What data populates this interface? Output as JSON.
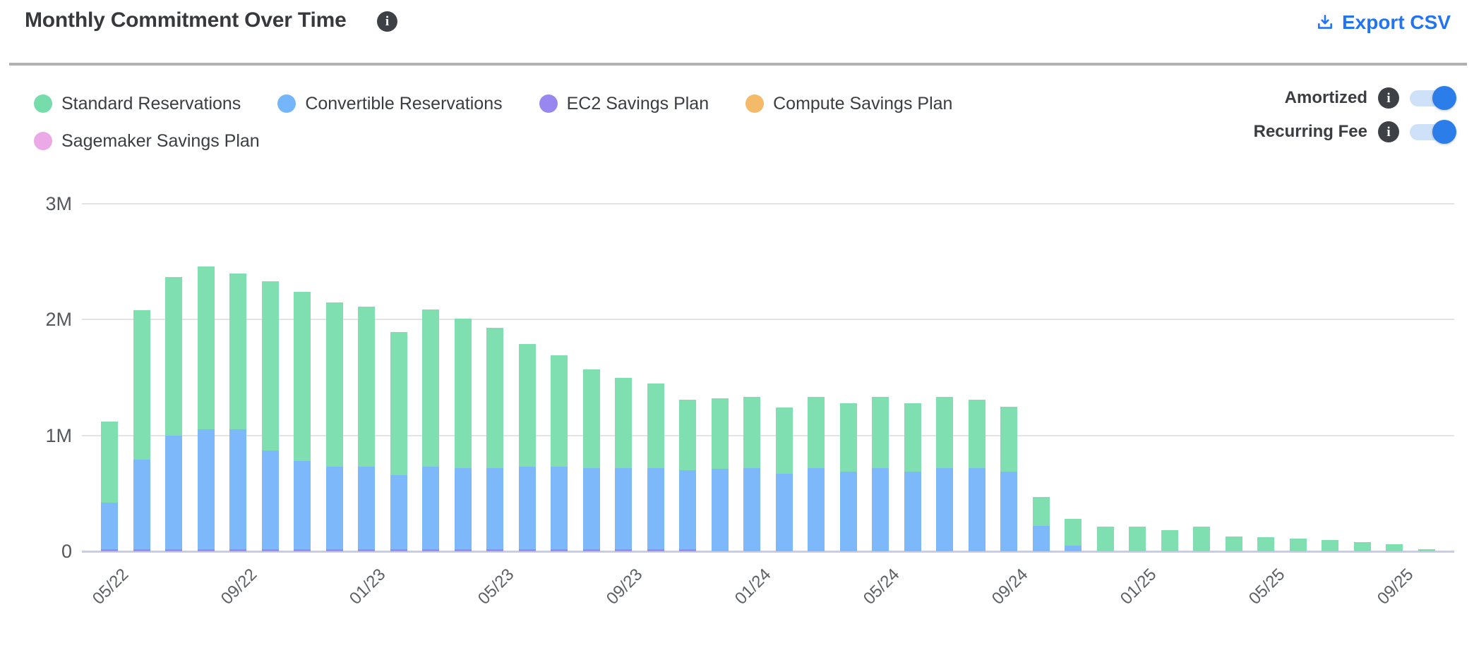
{
  "header": {
    "title": "Monthly Commitment Over Time",
    "info_icon": "i",
    "export_label": "Export CSV"
  },
  "legend": {
    "items": [
      {
        "label": "Standard Reservations",
        "color": "#76dcab"
      },
      {
        "label": "Convertible Reservations",
        "color": "#75b6fa"
      },
      {
        "label": "EC2 Savings Plan",
        "color": "#9787ef"
      },
      {
        "label": "Compute Savings Plan",
        "color": "#f4b969"
      },
      {
        "label": "Sagemaker Savings Plan",
        "color": "#eba9e8"
      }
    ]
  },
  "toggles": [
    {
      "label": "Amortized",
      "info_icon": "i",
      "state": "on"
    },
    {
      "label": "Recurring Fee",
      "info_icon": "i",
      "state": "on"
    }
  ],
  "colors": {
    "accent_blue": "#2374f2",
    "toggle_on": "#2b7de9",
    "toggle_track": "#cfe1f8",
    "info_icon_bg": "#3d4045",
    "bar_standard": "#80dfb0",
    "bar_convertible": "#7cb8fa",
    "bar_ec2_sp": "#9c8cf0",
    "gridline": "#e3e3e3",
    "baseline": "#c7cde6"
  },
  "chart_data": {
    "type": "bar",
    "stacked": true,
    "title": "Monthly Commitment Over Time",
    "xlabel": "",
    "ylabel": "",
    "values_unit": "millions",
    "ylim": [
      0,
      3
    ],
    "y_ticks": [
      "0",
      "1M",
      "2M",
      "3M"
    ],
    "grid": true,
    "legend_position": "top-left",
    "categories": [
      "05/22",
      "06/22",
      "07/22",
      "08/22",
      "09/22",
      "10/22",
      "11/22",
      "12/22",
      "01/23",
      "02/23",
      "03/23",
      "04/23",
      "05/23",
      "06/23",
      "07/23",
      "08/23",
      "09/23",
      "10/23",
      "11/23",
      "12/23",
      "01/24",
      "02/24",
      "03/24",
      "04/24",
      "05/24",
      "06/24",
      "07/24",
      "08/24",
      "09/24",
      "10/24",
      "11/24",
      "12/24",
      "01/25",
      "02/25",
      "03/25",
      "04/25",
      "05/25",
      "06/25",
      "07/25",
      "08/25",
      "09/25",
      "10/25"
    ],
    "x_ticks": [
      "05/22",
      "09/22",
      "01/23",
      "05/23",
      "09/23",
      "01/24",
      "05/24",
      "09/24",
      "01/25",
      "05/25",
      "09/25"
    ],
    "stack_order_note": "series listed bottom-to-top",
    "series": [
      {
        "name": "EC2 Savings Plan",
        "key": "ec2-savings-plan",
        "color": "#9c8cf0",
        "values": [
          0.02,
          0.02,
          0.02,
          0.02,
          0.02,
          0.02,
          0.02,
          0.02,
          0.02,
          0.02,
          0.02,
          0.02,
          0.02,
          0.02,
          0.02,
          0.02,
          0.02,
          0.02,
          0.02,
          0,
          0,
          0,
          0,
          0,
          0,
          0,
          0,
          0,
          0,
          0,
          0,
          0,
          0,
          0,
          0,
          0,
          0,
          0,
          0,
          0,
          0,
          0
        ]
      },
      {
        "name": "Convertible Reservations",
        "key": "convertible-reservations",
        "color": "#7cb8fa",
        "values": [
          0.4,
          0.77,
          0.98,
          1.03,
          1.03,
          0.85,
          0.76,
          0.71,
          0.71,
          0.64,
          0.71,
          0.7,
          0.7,
          0.71,
          0.71,
          0.7,
          0.7,
          0.7,
          0.68,
          0.71,
          0.72,
          0.67,
          0.72,
          0.69,
          0.72,
          0.69,
          0.72,
          0.72,
          0.69,
          0.22,
          0.05,
          0,
          0,
          0,
          0,
          0,
          0,
          0,
          0,
          0,
          0,
          0
        ]
      },
      {
        "name": "Standard Reservations",
        "key": "standard-reservations",
        "color": "#80dfb0",
        "values": [
          0.7,
          1.29,
          1.37,
          1.41,
          1.35,
          1.46,
          1.46,
          1.42,
          1.38,
          1.23,
          1.36,
          1.29,
          1.21,
          1.06,
          0.96,
          0.85,
          0.78,
          0.73,
          0.61,
          0.61,
          0.61,
          0.57,
          0.61,
          0.59,
          0.61,
          0.59,
          0.61,
          0.59,
          0.56,
          0.25,
          0.23,
          0.21,
          0.21,
          0.18,
          0.21,
          0.13,
          0.12,
          0.11,
          0.1,
          0.08,
          0.06,
          0.02
        ]
      },
      {
        "name": "Compute Savings Plan",
        "key": "compute-savings-plan",
        "color": "#f4b969",
        "values": [
          0,
          0,
          0,
          0,
          0,
          0,
          0,
          0,
          0,
          0,
          0,
          0,
          0,
          0,
          0,
          0,
          0,
          0,
          0,
          0,
          0,
          0,
          0,
          0,
          0,
          0,
          0,
          0,
          0,
          0,
          0,
          0,
          0,
          0,
          0,
          0,
          0,
          0,
          0,
          0,
          0,
          0
        ]
      },
      {
        "name": "Sagemaker Savings Plan",
        "key": "sagemaker-savings-plan",
        "color": "#eba9e8",
        "values": [
          0,
          0,
          0,
          0,
          0,
          0,
          0,
          0,
          0,
          0,
          0,
          0,
          0,
          0,
          0,
          0,
          0,
          0,
          0,
          0,
          0,
          0,
          0,
          0,
          0,
          0,
          0,
          0,
          0,
          0,
          0,
          0,
          0,
          0,
          0,
          0,
          0,
          0,
          0,
          0,
          0,
          0
        ]
      }
    ]
  }
}
